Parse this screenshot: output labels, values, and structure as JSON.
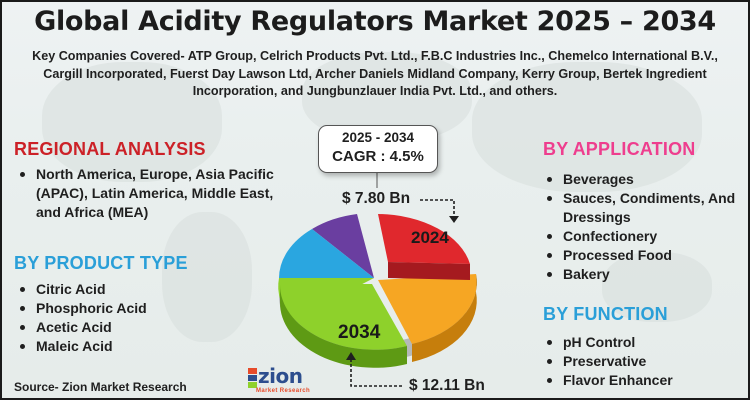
{
  "title": "Global Acidity Regulators Market 2025 – 2034",
  "companies_text": "Key Companies Covered- ATP Group, Celrich Products Pvt. Ltd., F.B.C Industries Inc., Chemelco International B.V., Cargill Incorporated, Fuerst Day Lawson Ltd, Archer Daniels Midland Company, Kerry Group, Bertek Ingredient Incorporation, and Jungbunzlauer India Pvt. Ltd., and others.",
  "regional": {
    "heading": "REGIONAL ANALYSIS",
    "items": [
      "North America, Europe, Asia Pacific (APAC), Latin America, Middle East, and Africa (MEA)"
    ]
  },
  "product_type": {
    "heading": "BY PRODUCT TYPE",
    "items": [
      "Citric Acid",
      "Phosphoric Acid",
      "Acetic Acid",
      "Maleic Acid"
    ]
  },
  "application": {
    "heading": "BY APPLICATION",
    "items": [
      "Beverages",
      "Sauces, Condiments, And Dressings",
      "Confectionery",
      "Processed Food",
      "Bakery"
    ]
  },
  "function": {
    "heading": "BY FUNCTION",
    "items": [
      "pH Control",
      "Preservative",
      "Flavor Enhancer"
    ]
  },
  "cagr": {
    "years": "2025 - 2034",
    "value": "CAGR : 4.5%"
  },
  "market_values": {
    "value_2024": "$ 7.80 Bn",
    "value_2034": "$ 12.11 Bn",
    "label_2024": "2024",
    "label_2034": "2034"
  },
  "source": "Source- Zion Market Research",
  "logo": {
    "word": "zion",
    "sub": "Market Research"
  },
  "colors": {
    "red": "#cc2127",
    "blue": "#2a9fd8",
    "pink": "#ee3e8e",
    "slice_red": "#e0282d",
    "slice_orange": "#f6a623",
    "slice_green": "#8ed12b",
    "slice_blue": "#2aa6e0",
    "slice_purple": "#6a3ea0"
  }
}
